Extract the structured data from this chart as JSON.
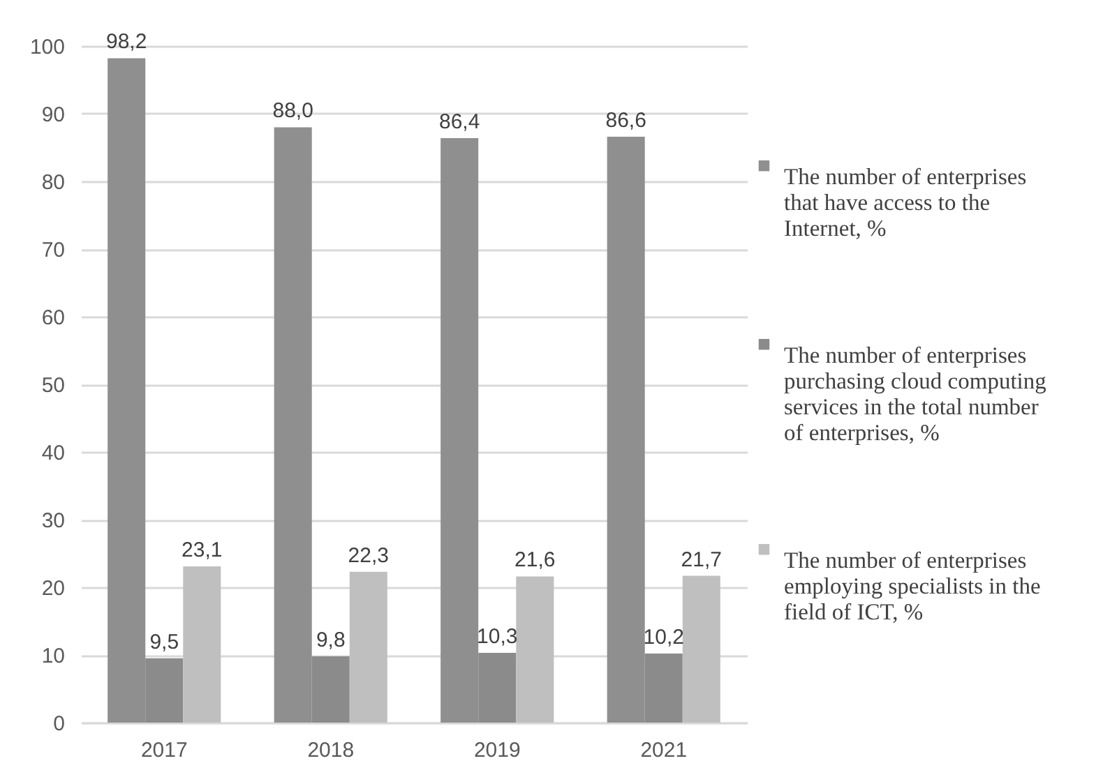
{
  "chart_data": {
    "type": "bar",
    "categories": [
      "2017",
      "2018",
      "2019",
      "2021"
    ],
    "series": [
      {
        "name": "The number of enterprises that have access to the Internet, %",
        "color": "#8f8f8f",
        "values": [
          98.2,
          88.0,
          86.4,
          86.6
        ],
        "value_labels": [
          "98,2",
          "88,0",
          "86,4",
          "86,6"
        ]
      },
      {
        "name": "The number of enterprises purchasing cloud computing services in the total number of enterprises, %",
        "color": "#8b8b8b",
        "values": [
          9.5,
          9.8,
          10.3,
          10.2
        ],
        "value_labels": [
          "9,5",
          "9,8",
          "10,3",
          "10,2"
        ]
      },
      {
        "name": "The number of enterprises employing specialists in the field of ICT, %",
        "color": "#bfbfbf",
        "values": [
          23.1,
          22.3,
          21.6,
          21.7
        ],
        "value_labels": [
          "23,1",
          "22,3",
          "21,6",
          "21,7"
        ]
      }
    ],
    "ylim": [
      0,
      100
    ],
    "yticks": [
      0,
      10,
      20,
      30,
      40,
      50,
      60,
      70,
      80,
      90,
      100
    ],
    "grid": "y",
    "legend": "right"
  }
}
